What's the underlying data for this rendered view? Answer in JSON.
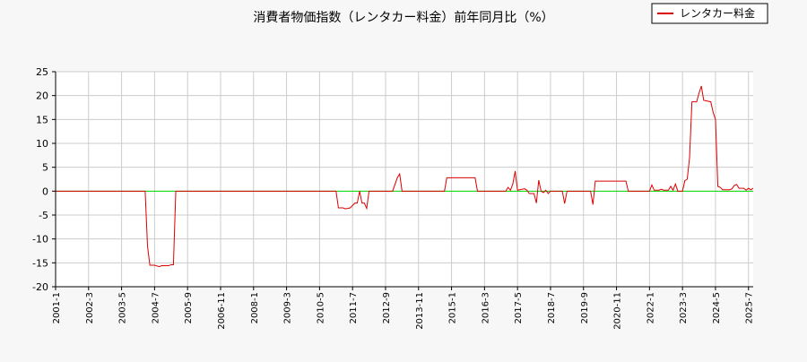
{
  "chart_data": {
    "type": "line",
    "title": "消費者物価指数（レンタカー料金）前年同月比（%）",
    "xlabel": "",
    "ylabel": "",
    "ylim": [
      -20,
      25
    ],
    "yticks": [
      25,
      20,
      15,
      10,
      5,
      0,
      -5,
      -10,
      -15,
      -20
    ],
    "xlim": [
      "2001-01",
      "2025-09"
    ],
    "xtick_labels": [
      "2001-1",
      "2002-3",
      "2003-5",
      "2004-7",
      "2005-9",
      "2006-11",
      "2008-1",
      "2009-3",
      "2010-5",
      "2011-7",
      "2012-9",
      "2013-11",
      "2015-1",
      "2016-3",
      "2017-5",
      "2018-7",
      "2019-9",
      "2020-11",
      "2022-1",
      "2023-3",
      "2024-5",
      "2025-7"
    ],
    "grid": true,
    "legend_position": "top-right",
    "colors": {
      "series": "#dd0000",
      "zero_line": "#00dd00",
      "grid": "#cccccc",
      "axis": "#000000",
      "plot_bg": "#ffffff",
      "page_bg": "#f7f7f7"
    },
    "series": [
      {
        "name": "レンタカー料金",
        "points": [
          [
            "2001-01",
            0
          ],
          [
            "2004-03",
            0
          ],
          [
            "2004-04",
            -11.5
          ],
          [
            "2004-05",
            -15.5
          ],
          [
            "2004-07",
            -15.5
          ],
          [
            "2004-09",
            -15.8
          ],
          [
            "2004-10",
            -15.6
          ],
          [
            "2005-01",
            -15.6
          ],
          [
            "2005-02",
            -15.4
          ],
          [
            "2005-03",
            -15.4
          ],
          [
            "2005-04",
            0
          ],
          [
            "2010-12",
            0
          ],
          [
            "2011-01",
            -3.5
          ],
          [
            "2011-03",
            -3.5
          ],
          [
            "2011-04",
            -3.7
          ],
          [
            "2011-06",
            -3.5
          ],
          [
            "2011-08",
            -2.5
          ],
          [
            "2011-09",
            -2.5
          ],
          [
            "2011-10",
            0
          ],
          [
            "2011-11",
            -2.5
          ],
          [
            "2011-12",
            -2.5
          ],
          [
            "2012-01",
            -3.6
          ],
          [
            "2012-02",
            0
          ],
          [
            "2012-12",
            0
          ],
          [
            "2013-02",
            2.8
          ],
          [
            "2013-03",
            3.6
          ],
          [
            "2013-04",
            0
          ],
          [
            "2014-10",
            0
          ],
          [
            "2014-11",
            2.8
          ],
          [
            "2015-11",
            2.8
          ],
          [
            "2015-12",
            0
          ],
          [
            "2016-12",
            0
          ],
          [
            "2017-01",
            0.8
          ],
          [
            "2017-02",
            0.2
          ],
          [
            "2017-03",
            1.5
          ],
          [
            "2017-04",
            4.2
          ],
          [
            "2017-05",
            0.2
          ],
          [
            "2017-08",
            0.5
          ],
          [
            "2017-09",
            0.2
          ],
          [
            "2017-10",
            -0.5
          ],
          [
            "2017-12",
            -0.5
          ],
          [
            "2018-01",
            -2.5
          ],
          [
            "2018-02",
            2.3
          ],
          [
            "2018-03",
            0
          ],
          [
            "2018-04",
            -0.3
          ],
          [
            "2018-05",
            0.2
          ],
          [
            "2018-06",
            -0.5
          ],
          [
            "2018-07",
            0
          ],
          [
            "2018-08",
            0
          ],
          [
            "2018-12",
            0
          ],
          [
            "2019-01",
            -2.6
          ],
          [
            "2019-02",
            0
          ],
          [
            "2019-12",
            0
          ],
          [
            "2020-01",
            -2.8
          ],
          [
            "2020-02",
            2.1
          ],
          [
            "2020-03",
            2.1
          ],
          [
            "2021-03",
            2.1
          ],
          [
            "2021-04",
            0
          ],
          [
            "2022-01",
            0
          ],
          [
            "2022-02",
            1.3
          ],
          [
            "2022-03",
            0.2
          ],
          [
            "2022-05",
            0.2
          ],
          [
            "2022-06",
            0.4
          ],
          [
            "2022-07",
            0.2
          ],
          [
            "2022-09",
            0.2
          ],
          [
            "2022-10",
            1.0
          ],
          [
            "2022-11",
            0.2
          ],
          [
            "2022-12",
            1.5
          ],
          [
            "2023-01",
            0
          ],
          [
            "2023-03",
            0
          ],
          [
            "2023-04",
            2.2
          ],
          [
            "2023-05",
            2.5
          ],
          [
            "2023-06",
            7.0
          ],
          [
            "2023-07",
            18.7
          ],
          [
            "2023-09",
            18.7
          ],
          [
            "2023-10",
            20.5
          ],
          [
            "2023-11",
            22.0
          ],
          [
            "2023-12",
            19.0
          ],
          [
            "2024-03",
            18.7
          ],
          [
            "2024-04",
            16.5
          ],
          [
            "2024-05",
            15.0
          ],
          [
            "2024-06",
            1.0
          ],
          [
            "2024-07",
            0.8
          ],
          [
            "2024-08",
            0.3
          ],
          [
            "2024-11",
            0.3
          ],
          [
            "2024-12",
            0.5
          ],
          [
            "2025-01",
            1.2
          ],
          [
            "2025-02",
            1.4
          ],
          [
            "2025-03",
            0.6
          ],
          [
            "2025-05",
            0.6
          ],
          [
            "2025-06",
            0.2
          ],
          [
            "2025-07",
            0.6
          ],
          [
            "2025-08",
            0.3
          ],
          [
            "2025-09",
            0.6
          ]
        ]
      }
    ]
  }
}
